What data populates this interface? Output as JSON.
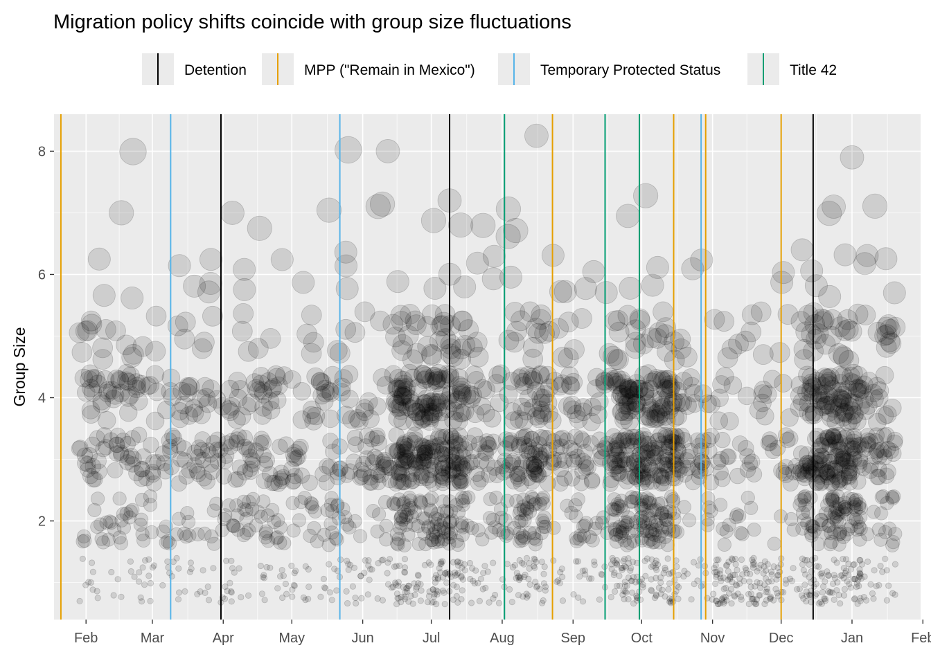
{
  "chart_data": {
    "type": "scatter",
    "title": "Migration policy shifts coincide with group size fluctuations",
    "xlabel": "",
    "ylabel": "Group Size",
    "xlim": [
      "2020-01-18",
      "2021-01-31"
    ],
    "ylim": [
      0.4,
      8.6
    ],
    "y_ticks": [
      2,
      4,
      6,
      8
    ],
    "y_tick_labels": [
      "2",
      "4",
      "6",
      "8"
    ],
    "x_ticks": [
      "2020-02-01",
      "2020-03-01",
      "2020-04-01",
      "2020-05-01",
      "2020-06-01",
      "2020-07-01",
      "2020-08-01",
      "2020-09-01",
      "2020-10-01",
      "2020-11-01",
      "2020-12-01",
      "2021-01-01",
      "2021-02-01"
    ],
    "x_tick_labels": [
      "Feb",
      "Mar",
      "Apr",
      "May",
      "Jun",
      "Jul",
      "Aug",
      "Sep",
      "Oct",
      "Nov",
      "Dec",
      "Jan",
      "Feb"
    ],
    "grid": true,
    "legend": {
      "placement": "top",
      "entries": [
        {
          "label": "Detention",
          "color": "#000000"
        },
        {
          "label": "MPP (\"Remain in Mexico\")",
          "color": "#E69F00"
        },
        {
          "label": "Temporary Protected Status",
          "color": "#56B4E9"
        },
        {
          "label": "Title 42",
          "color": "#009E73"
        }
      ]
    },
    "policy_events": [
      {
        "date": "2020-01-21",
        "policy": "MPP (\"Remain in Mexico\")"
      },
      {
        "date": "2020-03-09",
        "policy": "Temporary Protected Status"
      },
      {
        "date": "2020-03-31",
        "policy": "Detention"
      },
      {
        "date": "2020-05-22",
        "policy": "Temporary Protected Status"
      },
      {
        "date": "2020-07-09",
        "policy": "Detention"
      },
      {
        "date": "2020-08-02",
        "policy": "Title 42"
      },
      {
        "date": "2020-08-23",
        "policy": "MPP (\"Remain in Mexico\")"
      },
      {
        "date": "2020-09-15",
        "policy": "Title 42"
      },
      {
        "date": "2020-09-30",
        "policy": "Title 42"
      },
      {
        "date": "2020-10-15",
        "policy": "MPP (\"Remain in Mexico\")"
      },
      {
        "date": "2020-10-27",
        "policy": "Temporary Protected Status"
      },
      {
        "date": "2020-10-29",
        "policy": "MPP (\"Remain in Mexico\")"
      },
      {
        "date": "2020-12-01",
        "policy": "MPP (\"Remain in Mexico\")"
      },
      {
        "date": "2020-12-15",
        "policy": "Detention"
      }
    ],
    "points": {
      "x_range": [
        "2020-01-29",
        "2021-01-20"
      ],
      "point_color": "#000000",
      "point_opacity": 0.12,
      "size_encodes_group_size": true,
      "bands": [
        {
          "y_center": 1.0,
          "y_spread": [
            0.65,
            1.4
          ]
        },
        {
          "y_center": 2.0,
          "y_spread": [
            1.6,
            2.4
          ]
        },
        {
          "y_center": 3.0,
          "y_spread": [
            2.6,
            3.4
          ]
        },
        {
          "y_center": 4.0,
          "y_spread": [
            3.6,
            4.4
          ]
        },
        {
          "y_center": 5.0,
          "y_spread": [
            4.6,
            5.4
          ]
        },
        {
          "y_center": 6.0,
          "y_spread": [
            5.6,
            6.4
          ]
        },
        {
          "y_center": 7.0,
          "y_spread": [
            6.6,
            7.3
          ]
        },
        {
          "y_center": 8.0,
          "y_spread": [
            7.9,
            8.2
          ]
        }
      ],
      "highlighted_outliers": [
        {
          "x": "2020-06-12",
          "y": 8.0
        },
        {
          "x": "2020-08-16",
          "y": 8.25
        },
        {
          "x": "2021-01-01",
          "y": 7.9
        },
        {
          "x": "2020-04-05",
          "y": 7.0
        },
        {
          "x": "2020-07-09",
          "y": 7.2
        },
        {
          "x": "2020-09-25",
          "y": 6.95
        },
        {
          "x": "2020-12-24",
          "y": 7.1
        }
      ],
      "dense_periods": [
        {
          "from": "2020-06-15",
          "to": "2020-07-15",
          "max_level": 5
        },
        {
          "from": "2020-08-08",
          "to": "2020-08-20",
          "max_level": 5
        },
        {
          "from": "2020-09-18",
          "to": "2020-10-17",
          "max_level": 5
        },
        {
          "from": "2020-11-01",
          "to": "2020-12-01",
          "max_level": 1
        },
        {
          "from": "2020-12-10",
          "to": "2021-01-05",
          "max_level": 5
        }
      ]
    }
  }
}
